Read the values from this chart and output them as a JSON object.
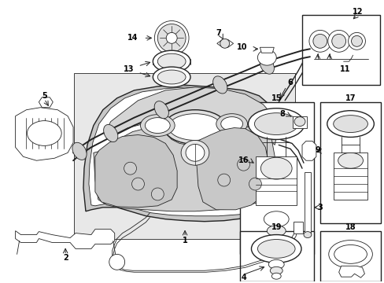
{
  "bg_color": "#ffffff",
  "fig_width": 4.89,
  "fig_height": 3.6,
  "dpi": 100,
  "line_color": "#222222",
  "gray_fill": "#d8d8d8",
  "light_gray": "#eeeeee"
}
